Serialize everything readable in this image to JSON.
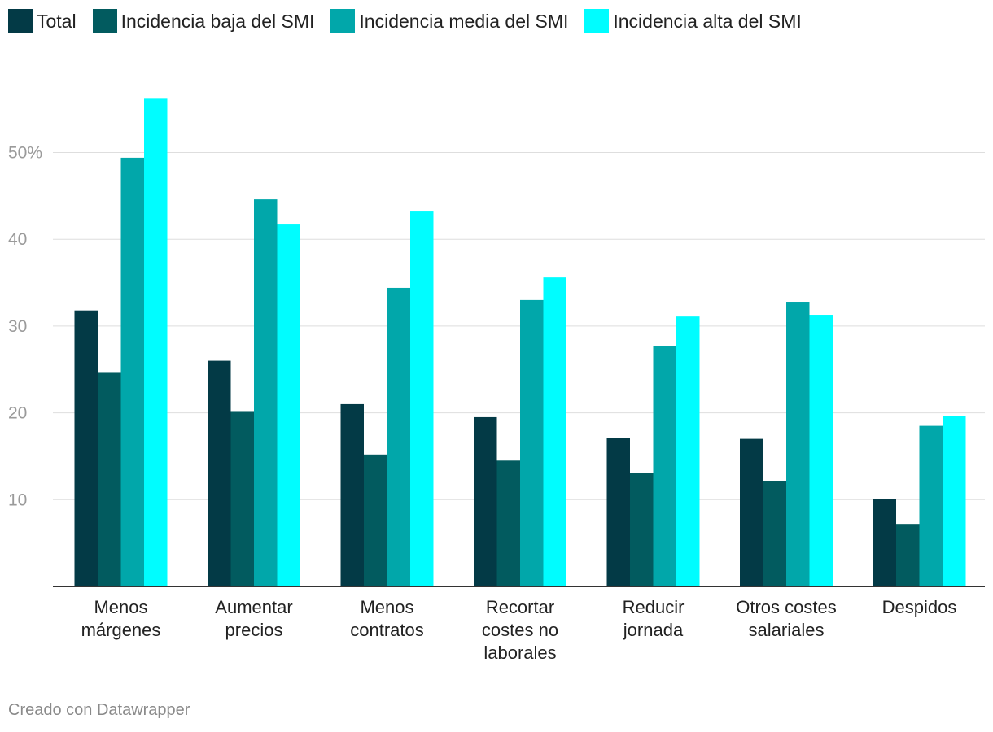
{
  "chart_data": {
    "type": "bar",
    "title": "",
    "xlabel": "",
    "ylabel": "",
    "ylim": [
      0,
      55
    ],
    "yticks": [
      10,
      20,
      30,
      40,
      50
    ],
    "ytick_labels": [
      "10",
      "20",
      "30",
      "40",
      "50%"
    ],
    "grid": true,
    "legend_position": "top-left",
    "categories": [
      [
        "Menos",
        "márgenes"
      ],
      [
        "Aumentar",
        "precios"
      ],
      [
        "Menos",
        "contratos"
      ],
      [
        "Recortar",
        "costes no",
        "laborales"
      ],
      [
        "Reducir",
        "jornada"
      ],
      [
        "Otros costes",
        "salariales"
      ],
      [
        "Despidos"
      ]
    ],
    "series": [
      {
        "name": "Total",
        "color": "#033a46",
        "values": [
          31.8,
          26.0,
          21.0,
          19.5,
          17.1,
          17.0,
          10.1
        ]
      },
      {
        "name": "Incidencia baja del SMI",
        "color": "#025b5f",
        "values": [
          24.7,
          20.2,
          15.2,
          14.5,
          13.1,
          12.1,
          7.2
        ]
      },
      {
        "name": "Incidencia media del SMI",
        "color": "#01a7aa",
        "values": [
          49.4,
          44.6,
          34.4,
          33.0,
          27.7,
          32.8,
          18.5
        ]
      },
      {
        "name": "Incidencia alta del SMI",
        "color": "#00fdff",
        "values": [
          56.2,
          41.7,
          43.2,
          35.6,
          31.1,
          31.3,
          19.6
        ]
      }
    ]
  },
  "footer": {
    "credit": "Creado con Datawrapper"
  }
}
